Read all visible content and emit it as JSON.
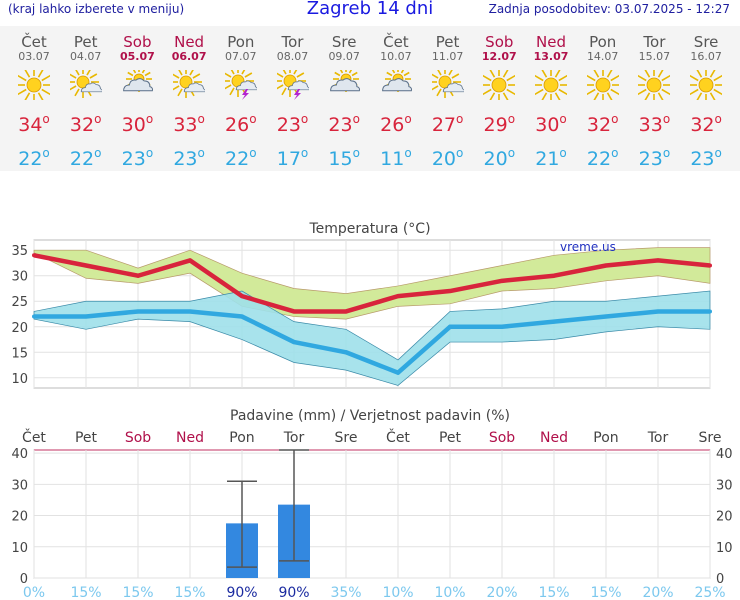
{
  "header": {
    "left": "(kraj lahko izberete v meniju)",
    "title": "Zagreb 14 dni",
    "updated": "Zadnja posodobitev: 03.07.2025 - 12:27"
  },
  "days": [
    {
      "name": "Čet",
      "date": "03.07",
      "weekend": false,
      "icon": "sun-icon",
      "tmax": "34",
      "tmin": "22"
    },
    {
      "name": "Pet",
      "date": "04.07",
      "weekend": false,
      "icon": "sun-cloud-icon",
      "tmax": "32",
      "tmin": "22"
    },
    {
      "name": "Sob",
      "date": "05.07",
      "weekend": true,
      "icon": "cloud-sun-icon",
      "tmax": "30",
      "tmin": "23"
    },
    {
      "name": "Ned",
      "date": "06.07",
      "weekend": true,
      "icon": "sun-cloud-icon",
      "tmax": "33",
      "tmin": "23"
    },
    {
      "name": "Pon",
      "date": "07.07",
      "weekend": false,
      "icon": "thunder-sun-icon",
      "tmax": "26",
      "tmin": "22"
    },
    {
      "name": "Tor",
      "date": "08.07",
      "weekend": false,
      "icon": "thunder-sun-icon",
      "tmax": "23",
      "tmin": "17"
    },
    {
      "name": "Sre",
      "date": "09.07",
      "weekend": false,
      "icon": "cloud-sun-icon",
      "tmax": "23",
      "tmin": "15"
    },
    {
      "name": "Čet",
      "date": "10.07",
      "weekend": false,
      "icon": "cloud-sun-icon",
      "tmax": "26",
      "tmin": "11"
    },
    {
      "name": "Pet",
      "date": "11.07",
      "weekend": false,
      "icon": "sun-cloud-icon",
      "tmax": "27",
      "tmin": "20"
    },
    {
      "name": "Sob",
      "date": "12.07",
      "weekend": true,
      "icon": "sun-icon",
      "tmax": "29",
      "tmin": "20"
    },
    {
      "name": "Ned",
      "date": "13.07",
      "weekend": true,
      "icon": "sun-icon",
      "tmax": "30",
      "tmin": "21"
    },
    {
      "name": "Pon",
      "date": "14.07",
      "weekend": false,
      "icon": "sun-icon",
      "tmax": "32",
      "tmin": "22"
    },
    {
      "name": "Tor",
      "date": "15.07",
      "weekend": false,
      "icon": "sun-icon",
      "tmax": "33",
      "tmin": "23"
    },
    {
      "name": "Sre",
      "date": "16.07",
      "weekend": false,
      "icon": "sun-icon",
      "tmax": "32",
      "tmin": "23"
    }
  ],
  "colors": {
    "max_line": "#d8243c",
    "min_line": "#30a8e0",
    "max_band": "#d2ea9a",
    "min_band": "#9ee0ea",
    "overlap_band": "#8ed49a",
    "bar": "#3388e0",
    "weekend": "#b0104a",
    "prob": "#7cc8ee"
  },
  "chart_data": [
    {
      "type": "line",
      "title": "Temperatura (°C)",
      "watermark": "vreme.us",
      "categories": [
        "03.07",
        "04.07",
        "05.07",
        "06.07",
        "07.07",
        "08.07",
        "09.07",
        "10.07",
        "11.07",
        "12.07",
        "13.07",
        "14.07",
        "15.07",
        "16.07"
      ],
      "series": [
        {
          "values": [
            34,
            32,
            30,
            33,
            26,
            23,
            23,
            26,
            27,
            29,
            30,
            32,
            33,
            32
          ],
          "range_low": [
            34.5,
            29.5,
            28.5,
            30.5,
            24,
            22,
            21.5,
            24,
            24.5,
            27,
            27.5,
            29,
            30,
            28.5
          ],
          "range_high": [
            35,
            35,
            31.5,
            35,
            30.5,
            27.5,
            26.5,
            28,
            30,
            32,
            34,
            35,
            35.5,
            35.5
          ]
        },
        {
          "values": [
            22,
            22,
            23,
            23,
            22,
            17,
            15,
            11,
            20,
            20,
            21,
            22,
            23,
            23
          ],
          "range_low": [
            21.5,
            19.5,
            21.5,
            21,
            17.5,
            13,
            11.5,
            8.5,
            17,
            17,
            17.5,
            19,
            20,
            19.5
          ],
          "range_high": [
            23,
            25,
            25,
            25,
            27,
            21,
            19.5,
            13.5,
            23,
            23.5,
            25,
            25,
            26,
            27
          ]
        }
      ],
      "ylim": [
        8,
        37
      ],
      "yticks": [
        10,
        15,
        20,
        25,
        30,
        35
      ],
      "grid": true
    },
    {
      "type": "bar",
      "title": "Padavine (mm) / Verjetnost padavin (%)",
      "categories": [
        "Čet",
        "Pet",
        "Sob",
        "Ned",
        "Pon",
        "Tor",
        "Sre",
        "Čet",
        "Pet",
        "Sob",
        "Ned",
        "Pon",
        "Tor",
        "Sre"
      ],
      "weekend": [
        false,
        false,
        true,
        true,
        false,
        false,
        false,
        false,
        false,
        true,
        true,
        false,
        false,
        false
      ],
      "values": [
        0,
        0,
        0,
        0,
        17.5,
        23.5,
        0,
        0,
        0,
        0,
        0,
        0,
        0,
        0
      ],
      "error_low": [
        0,
        0,
        0,
        0,
        3.5,
        5.5,
        0,
        0,
        0,
        0,
        0,
        0,
        0,
        0
      ],
      "error_high": [
        0,
        0,
        0,
        0,
        31,
        41,
        0,
        0,
        0,
        0,
        0,
        0,
        0,
        0
      ],
      "probability_labels": [
        "0%",
        "15%",
        "15%",
        "15%",
        "90%",
        "90%",
        "35%",
        "10%",
        "10%",
        "20%",
        "15%",
        "15%",
        "20%",
        "25%"
      ],
      "ylim": [
        0,
        41
      ],
      "yticks": [
        0,
        10,
        20,
        30,
        40
      ],
      "grid": true
    }
  ]
}
